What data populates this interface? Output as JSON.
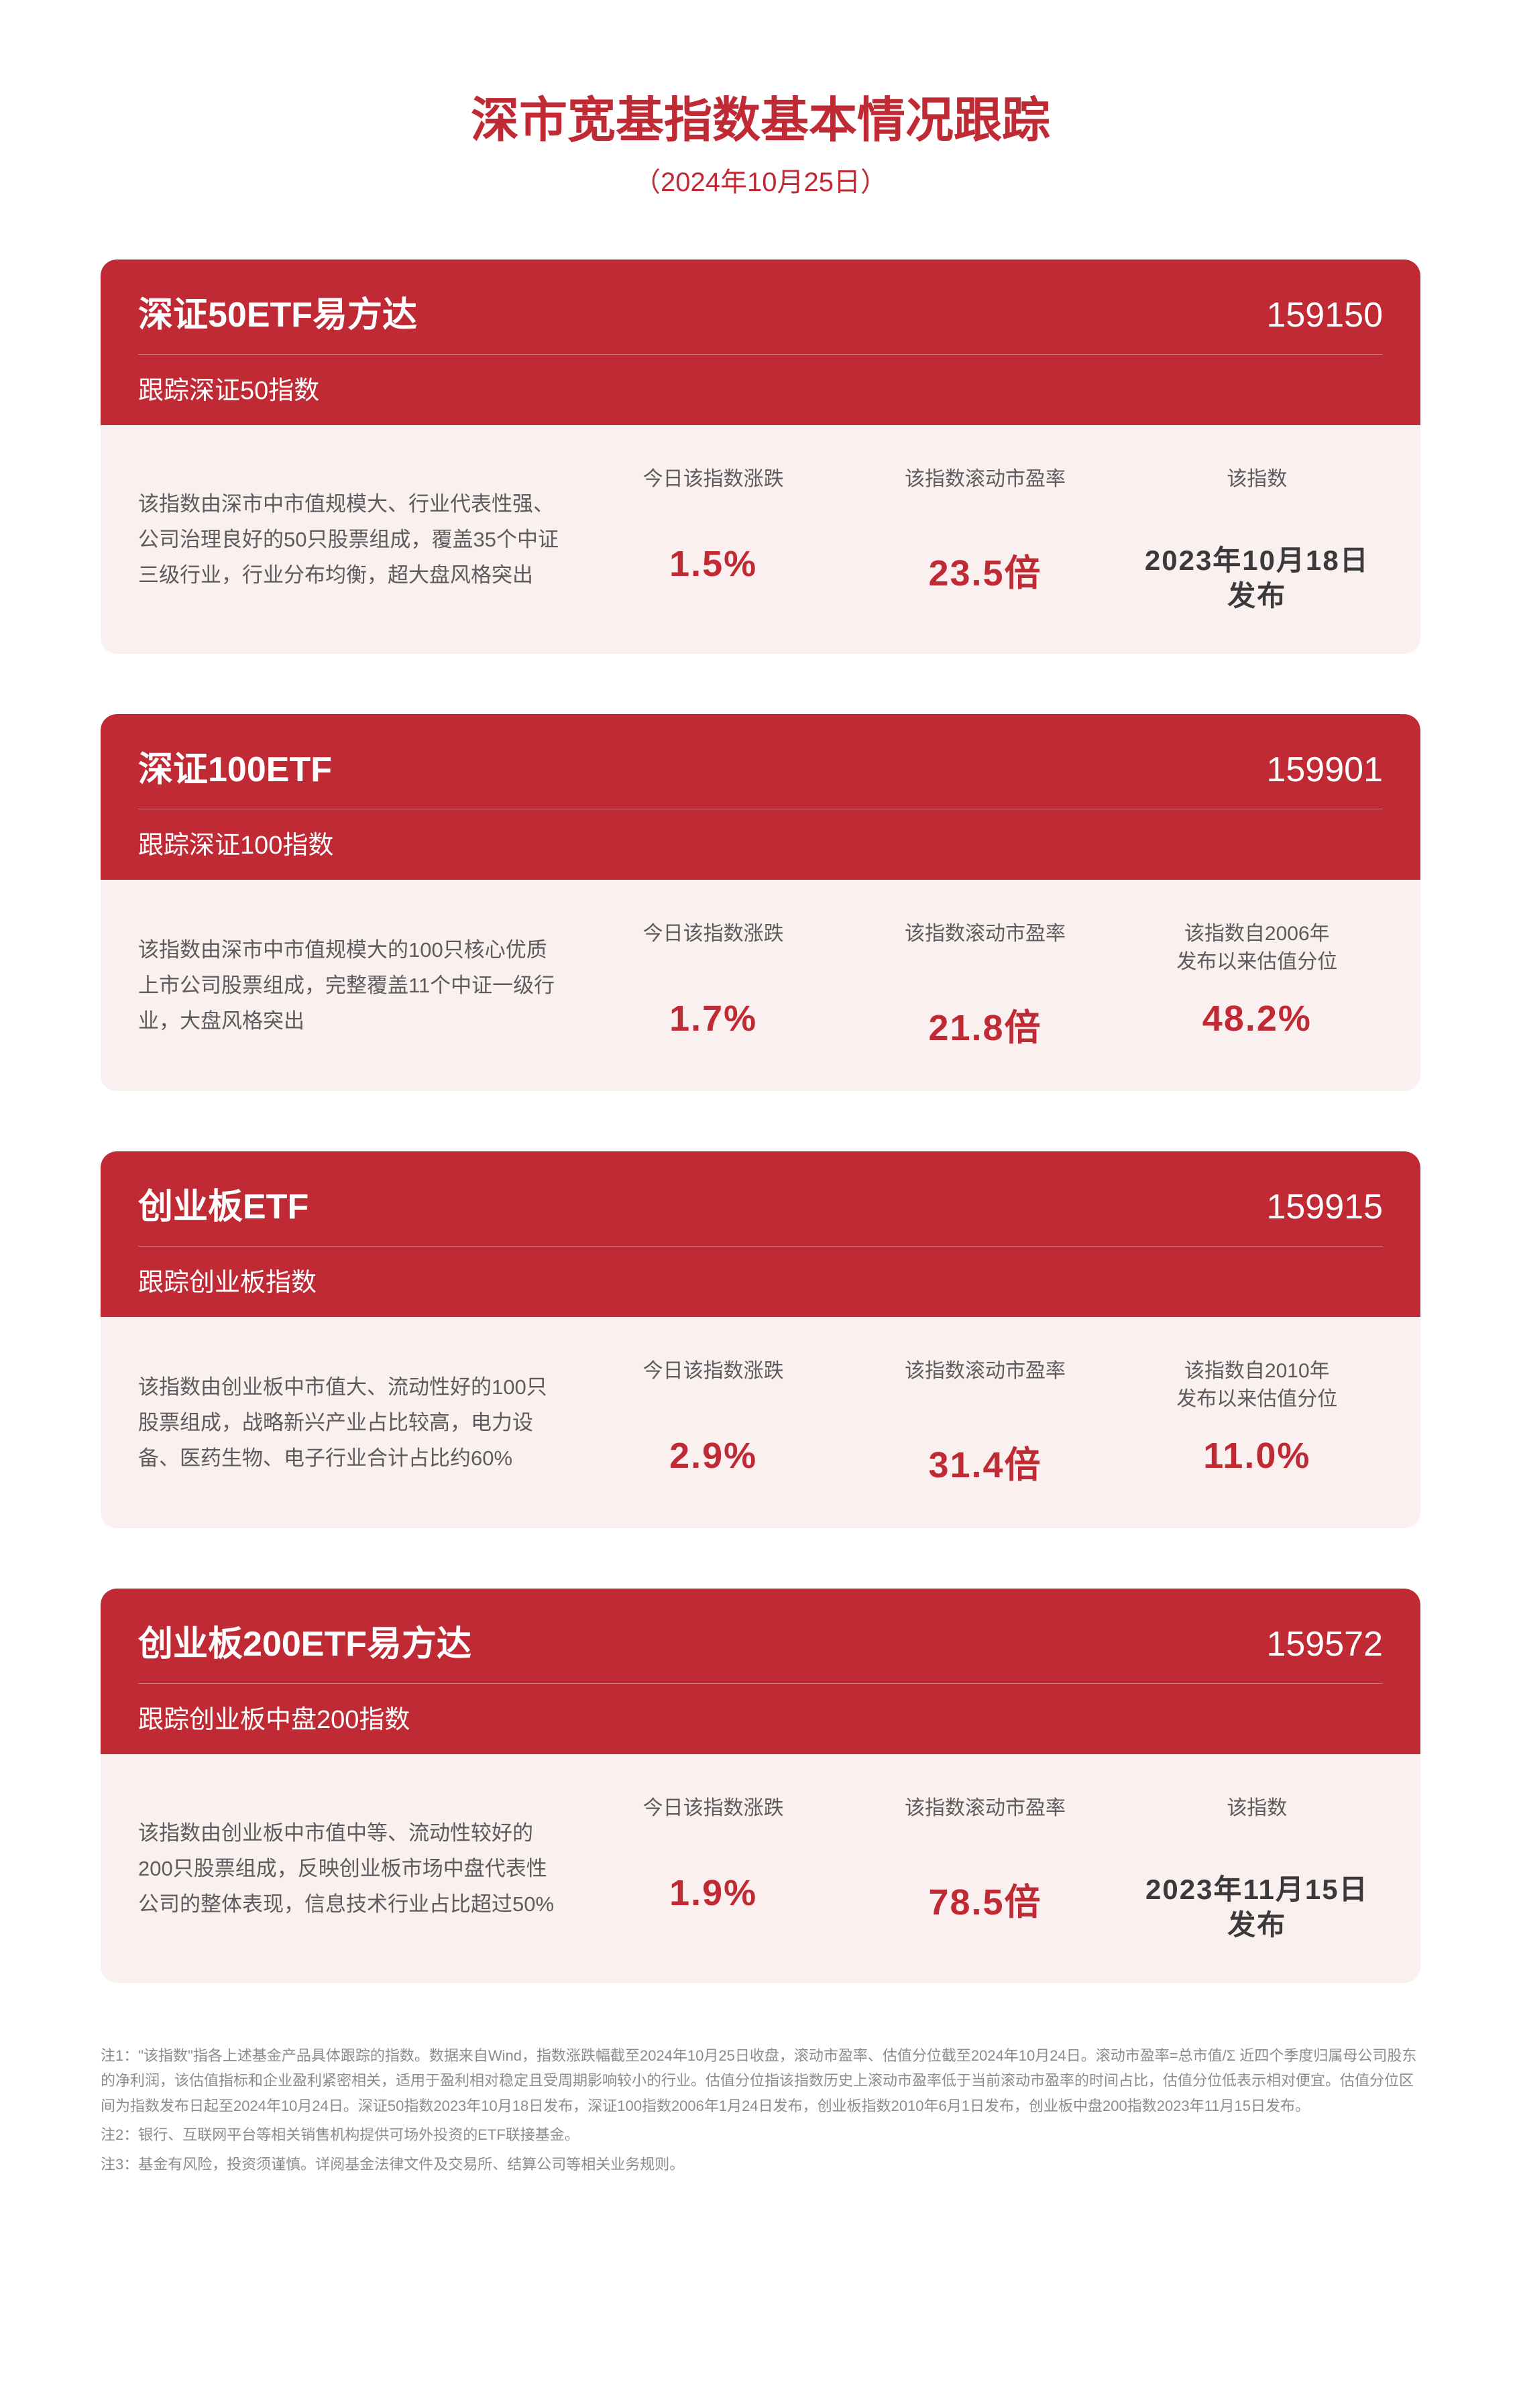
{
  "colors": {
    "title": "#c02a34",
    "header_bg": "#c02a34",
    "body_bg": "#faf0ef",
    "metric_value": "#c02a34",
    "text_grey": "#5c5c5c",
    "footnote_grey": "#8c8c8c"
  },
  "page": {
    "title": "深市宽基指数基本情况跟踪",
    "subtitle": "（2024年10月25日）"
  },
  "cards": [
    {
      "name": "深证50ETF易方达",
      "code": "159150",
      "track": "跟踪深证50指数",
      "desc": "该指数由深市中市值规模大、行业代表性强、公司治理良好的50只股票组成，覆盖35个中证三级行业，行业分布均衡，超大盘风格突出",
      "metrics": [
        {
          "label": "今日该指数涨跌",
          "value": "1.5%",
          "style": "colored"
        },
        {
          "label": "该指数滚动市盈率",
          "value": "23.5倍",
          "style": "colored"
        },
        {
          "label": "该指数",
          "value": "2023年10月18日\n发布",
          "style": "dark"
        }
      ]
    },
    {
      "name": "深证100ETF",
      "code": "159901",
      "track": "跟踪深证100指数",
      "desc": "该指数由深市中市值规模大的100只核心优质上市公司股票组成，完整覆盖11个中证一级行业，大盘风格突出",
      "metrics": [
        {
          "label": "今日该指数涨跌",
          "value": "1.7%",
          "style": "colored"
        },
        {
          "label": "该指数滚动市盈率",
          "value": "21.8倍",
          "style": "colored"
        },
        {
          "label": "该指数自2006年\n发布以来估值分位",
          "value": "48.2%",
          "style": "colored"
        }
      ]
    },
    {
      "name": "创业板ETF",
      "code": "159915",
      "track": "跟踪创业板指数",
      "desc": "该指数由创业板中市值大、流动性好的100只股票组成，战略新兴产业占比较高，电力设备、医药生物、电子行业合计占比约60%",
      "metrics": [
        {
          "label": "今日该指数涨跌",
          "value": "2.9%",
          "style": "colored"
        },
        {
          "label": "该指数滚动市盈率",
          "value": "31.4倍",
          "style": "colored"
        },
        {
          "label": "该指数自2010年\n发布以来估值分位",
          "value": "11.0%",
          "style": "colored"
        }
      ]
    },
    {
      "name": "创业板200ETF易方达",
      "code": "159572",
      "track": "跟踪创业板中盘200指数",
      "desc": "该指数由创业板中市值中等、流动性较好的200只股票组成，反映创业板市场中盘代表性公司的整体表现，信息技术行业占比超过50%",
      "metrics": [
        {
          "label": "今日该指数涨跌",
          "value": "1.9%",
          "style": "colored"
        },
        {
          "label": "该指数滚动市盈率",
          "value": "78.5倍",
          "style": "colored"
        },
        {
          "label": "该指数",
          "value": "2023年11月15日\n发布",
          "style": "dark"
        }
      ]
    }
  ],
  "footnotes": [
    "注1：\"该指数\"指各上述基金产品具体跟踪的指数。数据来自Wind，指数涨跌幅截至2024年10月25日收盘，滚动市盈率、估值分位截至2024年10月24日。滚动市盈率=总市值/Σ 近四个季度归属母公司股东的净利润，该估值指标和企业盈利紧密相关，适用于盈利相对稳定且受周期影响较小的行业。估值分位指该指数历史上滚动市盈率低于当前滚动市盈率的时间占比，估值分位低表示相对便宜。估值分位区间为指数发布日起至2024年10月24日。深证50指数2023年10月18日发布，深证100指数2006年1月24日发布，创业板指数2010年6月1日发布，创业板中盘200指数2023年11月15日发布。",
    "注2：银行、互联网平台等相关销售机构提供可场外投资的ETF联接基金。",
    "注3：基金有风险，投资须谨慎。详阅基金法律文件及交易所、结算公司等相关业务规则。"
  ]
}
